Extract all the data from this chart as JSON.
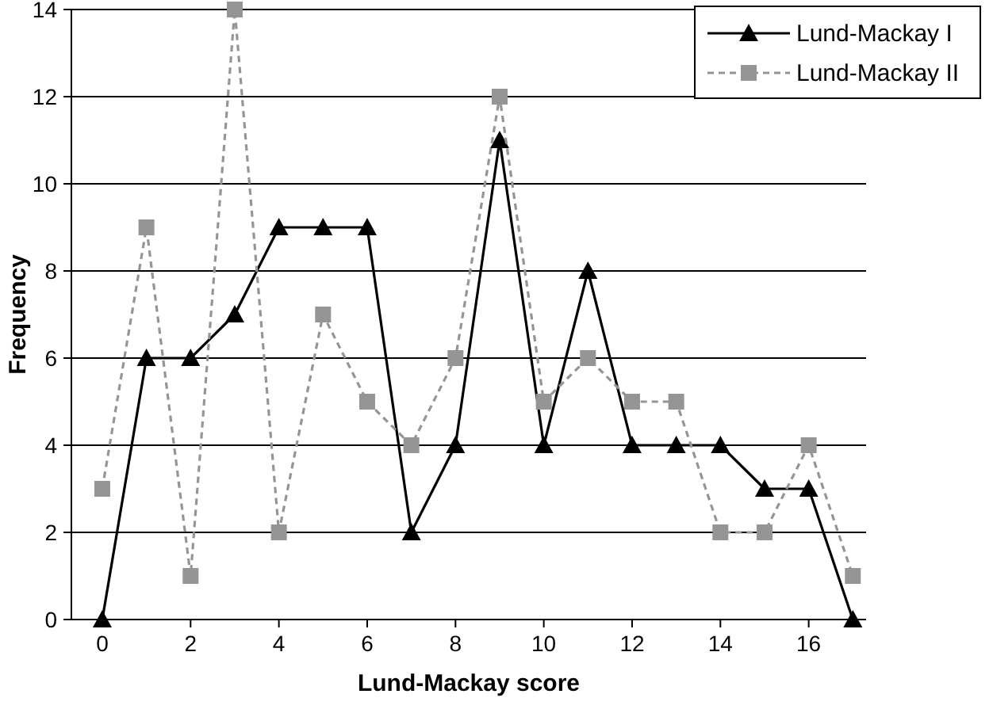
{
  "chart_data": {
    "type": "line",
    "xlabel": "Lund-Mackay score",
    "ylabel": "Frequency",
    "x": [
      0,
      1,
      2,
      3,
      4,
      5,
      6,
      7,
      8,
      9,
      10,
      11,
      12,
      13,
      14,
      15,
      16,
      17
    ],
    "series": [
      {
        "name": "Lund-Mackay I",
        "color": "#000000",
        "marker": "triangle",
        "line_style": "solid",
        "values": [
          0,
          6,
          6,
          7,
          9,
          9,
          9,
          2,
          4,
          11,
          4,
          8,
          4,
          4,
          4,
          3,
          3,
          0
        ]
      },
      {
        "name": "Lund-Mackay II",
        "color": "#959595",
        "marker": "square",
        "line_style": "dashed",
        "values": [
          3,
          9,
          1,
          14,
          2,
          7,
          5,
          4,
          6,
          12,
          5,
          6,
          5,
          5,
          2,
          2,
          4,
          1
        ]
      }
    ],
    "xlim": [
      -0.7,
      17.3
    ],
    "xticks": [
      0,
      2,
      4,
      6,
      8,
      10,
      12,
      14,
      16
    ],
    "ylim": [
      0,
      14
    ],
    "yticks": [
      0,
      2,
      4,
      6,
      8,
      10,
      12,
      14
    ],
    "grid": "y",
    "legend": "top right"
  }
}
